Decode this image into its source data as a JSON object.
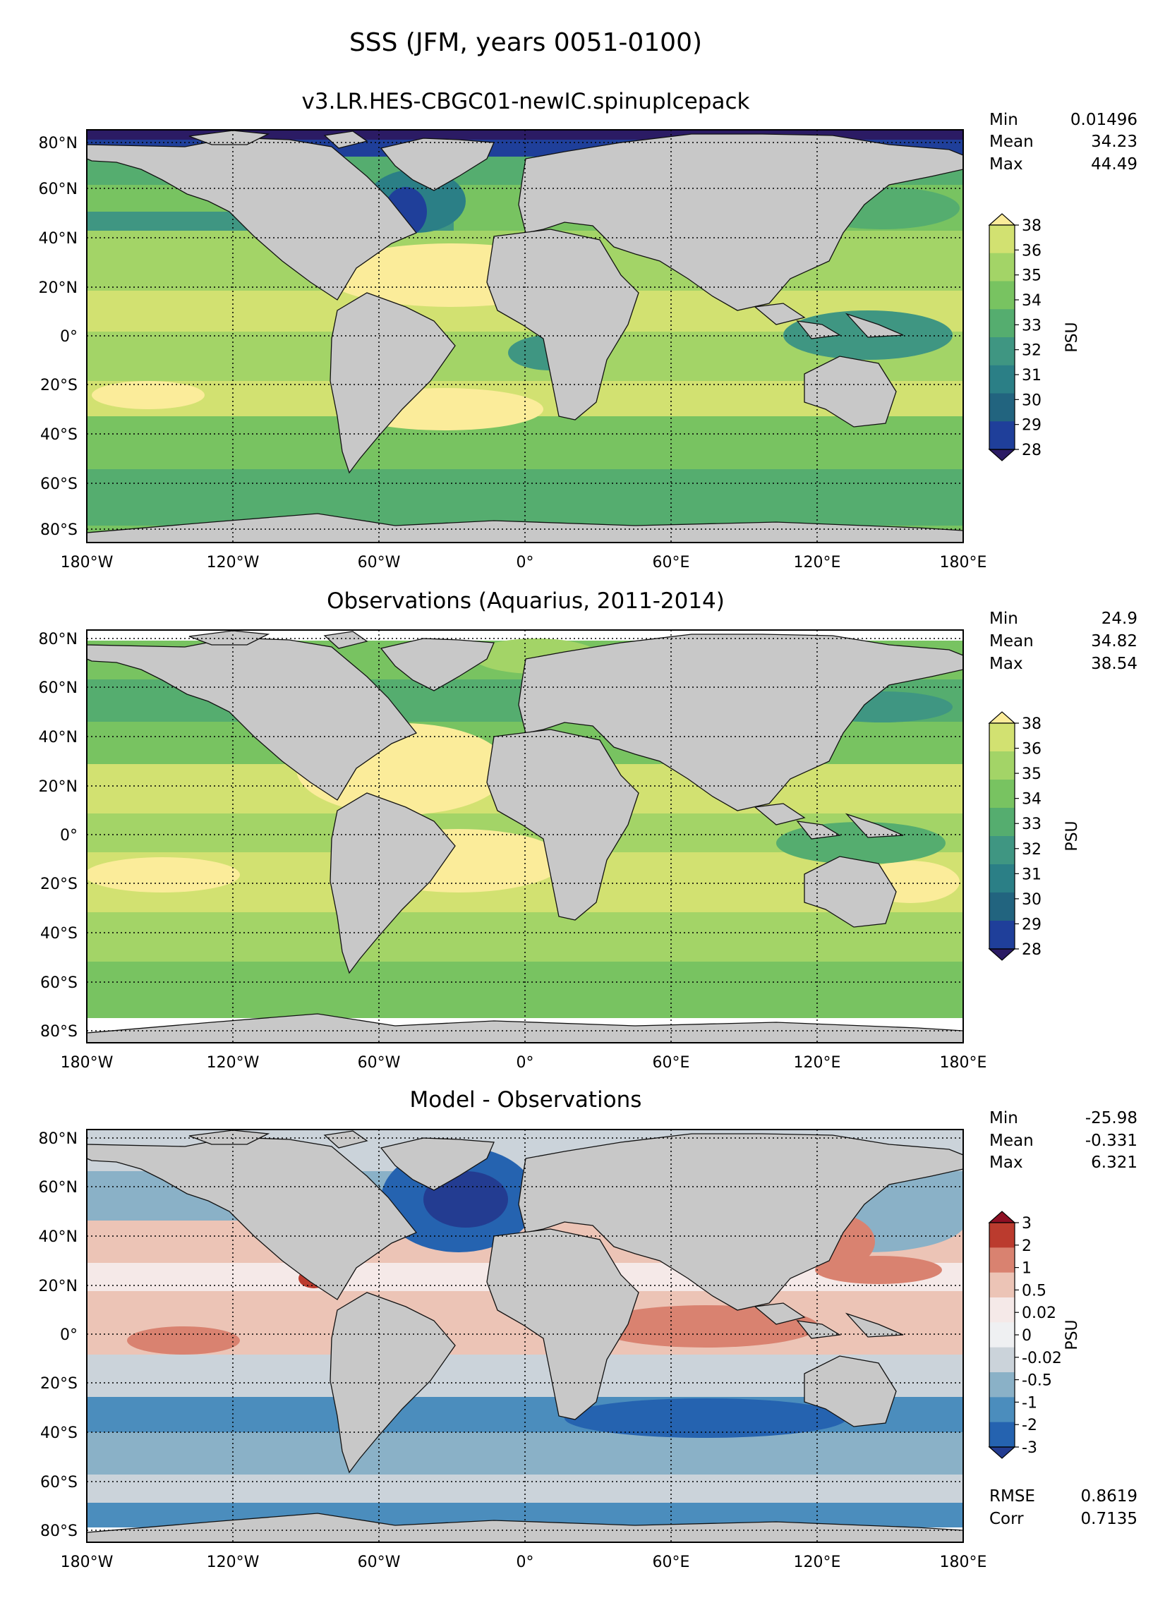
{
  "figure": {
    "title": "SSS (JFM, years 0051-0100)"
  },
  "axes": {
    "x_ticks": [
      "180°W",
      "120°W",
      "60°W",
      "0°",
      "60°E",
      "120°E",
      "180°E"
    ],
    "y_ticks": [
      "80°N",
      "60°N",
      "40°N",
      "20°N",
      "0°",
      "20°S",
      "40°S",
      "60°S",
      "80°S"
    ]
  },
  "panels": [
    {
      "id": "model",
      "title": "v3.LR.HES-CBGC01-newIC.spinupIcepack",
      "stats": [
        {
          "label": "Min",
          "value": "0.01496"
        },
        {
          "label": "Mean",
          "value": "34.23"
        },
        {
          "label": "Max",
          "value": "44.49"
        }
      ],
      "colorbar": {
        "label": "PSU",
        "ticks": [
          "38",
          "36",
          "35",
          "34",
          "33",
          "32",
          "31",
          "30",
          "29",
          "28"
        ],
        "colors": [
          "#fbec9a",
          "#d2e171",
          "#a3d467",
          "#78c361",
          "#55ad6f",
          "#3f9682",
          "#2b7f86",
          "#22647f",
          "#1f3f9a",
          "#2b1b64"
        ]
      },
      "extra_stats": []
    },
    {
      "id": "obs",
      "title": "Observations (Aquarius, 2011-2014)",
      "stats": [
        {
          "label": "Min",
          "value": "24.9"
        },
        {
          "label": "Mean",
          "value": "34.82"
        },
        {
          "label": "Max",
          "value": "38.54"
        }
      ],
      "colorbar": {
        "label": "PSU",
        "ticks": [
          "38",
          "36",
          "35",
          "34",
          "33",
          "32",
          "31",
          "30",
          "29",
          "28"
        ],
        "colors": [
          "#fbec9a",
          "#d2e171",
          "#a3d467",
          "#78c361",
          "#55ad6f",
          "#3f9682",
          "#2b7f86",
          "#22647f",
          "#1f3f9a",
          "#2b1b64"
        ]
      },
      "extra_stats": []
    },
    {
      "id": "diff",
      "title": "Model - Observations",
      "stats": [
        {
          "label": "Min",
          "value": "-25.98"
        },
        {
          "label": "Mean",
          "value": "-0.331"
        },
        {
          "label": "Max",
          "value": "6.321"
        }
      ],
      "colorbar": {
        "label": "PSU",
        "ticks": [
          "3",
          "2",
          "1",
          "0.5",
          "0.02",
          "0",
          "-0.02",
          "-0.5",
          "-1",
          "-2",
          "-3"
        ],
        "colors": [
          "#8e1024",
          "#bb3b2e",
          "#d98270",
          "#ecc4b6",
          "#f5e9e8",
          "#eff0f2",
          "#cbd3da",
          "#8ab1c7",
          "#4b8dbd",
          "#2563b0",
          "#233c91"
        ]
      },
      "extra_stats": [
        {
          "label": "RMSE",
          "value": "0.8619"
        },
        {
          "label": "Corr",
          "value": "0.7135"
        }
      ]
    }
  ],
  "colors": {
    "land": "#c8c8c8",
    "frame": "#000000"
  }
}
